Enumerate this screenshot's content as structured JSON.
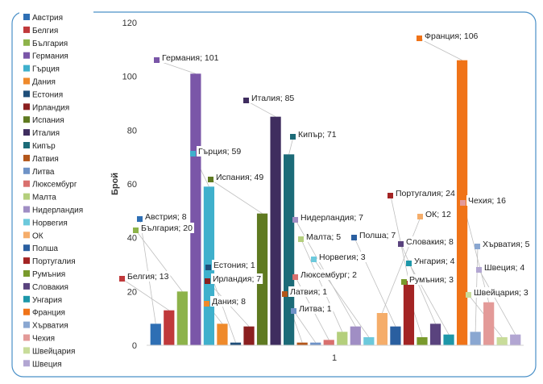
{
  "chart_data": {
    "type": "bar",
    "title": "",
    "xlabel": "",
    "ylabel": "Брой",
    "ylim": [
      0,
      120
    ],
    "yticks": [
      0,
      20,
      40,
      60,
      80,
      100,
      120
    ],
    "categories": [
      "1"
    ],
    "legend_position": "left",
    "grid": false,
    "series": [
      {
        "name": "Австрия",
        "value": 8,
        "color": "#2e6fb4"
      },
      {
        "name": "Белгия",
        "value": 13,
        "color": "#c0393b"
      },
      {
        "name": "България",
        "value": 20,
        "color": "#8db34a"
      },
      {
        "name": "Германия",
        "value": 101,
        "color": "#7a56a8"
      },
      {
        "name": "Гърция",
        "value": 59,
        "color": "#3fb0cc"
      },
      {
        "name": "Дания",
        "value": 8,
        "color": "#ef8a2b"
      },
      {
        "name": "Естония",
        "value": 1,
        "color": "#1f4e79"
      },
      {
        "name": "Ирландия",
        "value": 7,
        "color": "#8b1f1f"
      },
      {
        "name": "Испания",
        "value": 49,
        "color": "#5f7a21"
      },
      {
        "name": "Италия",
        "value": 85,
        "color": "#3f2d5f"
      },
      {
        "name": "Кипър",
        "value": 71,
        "color": "#1c6b78"
      },
      {
        "name": "Латвия",
        "value": 1,
        "color": "#b3561a"
      },
      {
        "name": "Литва",
        "value": 1,
        "color": "#6f93c7"
      },
      {
        "name": "Люксембург",
        "value": 2,
        "color": "#d9706e"
      },
      {
        "name": "Малта",
        "value": 5,
        "color": "#b4cf7c"
      },
      {
        "name": "Нидерландия",
        "value": 7,
        "color": "#a08ec4"
      },
      {
        "name": "Норвегия",
        "value": 3,
        "color": "#6cc9dc"
      },
      {
        "name": "ОК",
        "value": 12,
        "color": "#f5ad6a"
      },
      {
        "name": "Полша",
        "value": 7,
        "color": "#2a5fa0"
      },
      {
        "name": "Португалия",
        "value": 24,
        "color": "#a32424"
      },
      {
        "name": "Румъния",
        "value": 3,
        "color": "#799a2c"
      },
      {
        "name": "Словакия",
        "value": 8,
        "color": "#5a437e"
      },
      {
        "name": "Унгария",
        "value": 4,
        "color": "#1d97a9"
      },
      {
        "name": "Франция",
        "value": 106,
        "color": "#f07318"
      },
      {
        "name": "Хърватия",
        "value": 5,
        "color": "#8aa7d1"
      },
      {
        "name": "Чехия",
        "value": 16,
        "color": "#e39a98"
      },
      {
        "name": "Швейцария",
        "value": 3,
        "color": "#c8dc9a"
      },
      {
        "name": "Швеция",
        "value": 4,
        "color": "#b2a6d2"
      }
    ]
  }
}
